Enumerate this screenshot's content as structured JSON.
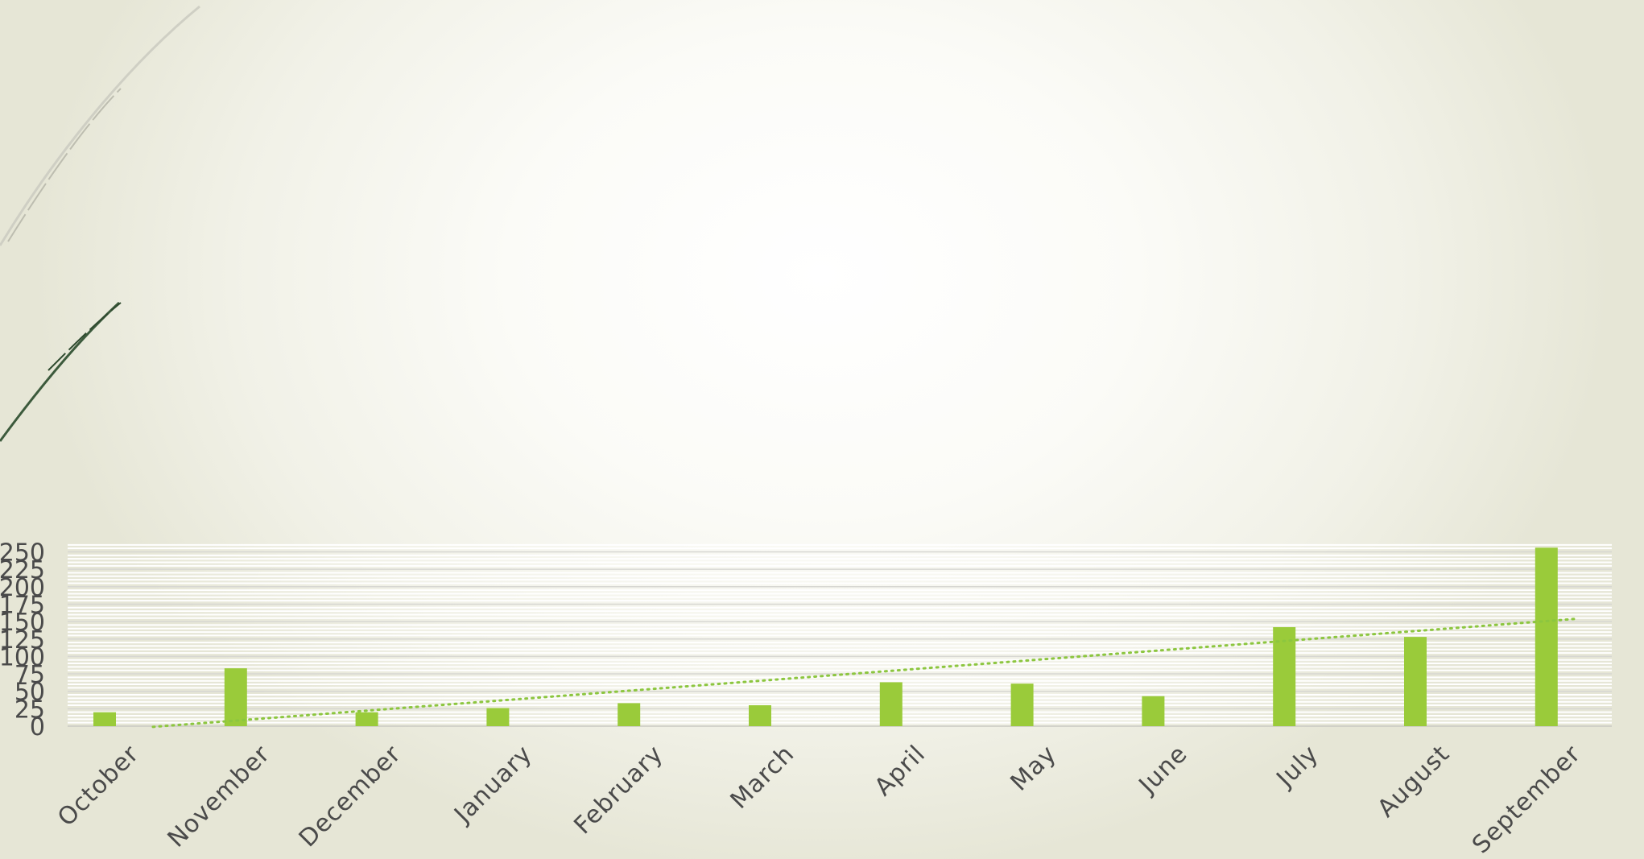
{
  "chart_data": {
    "type": "bar",
    "title": "",
    "xlabel": "",
    "ylabel": "",
    "categories": [
      "October",
      "November",
      "December",
      "January",
      "February",
      "March",
      "April",
      "May",
      "June",
      "July",
      "August",
      "September"
    ],
    "series": [
      {
        "values": [
          20,
          83,
          20,
          26,
          33,
          30,
          63,
          61,
          43,
          142,
          128,
          256
        ]
      }
    ],
    "trendline": {
      "type": "linear",
      "style": "dotted",
      "start_value": -1,
      "end_value": 154
    },
    "ylim": [
      0,
      260
    ],
    "yticks": [
      0,
      25,
      50,
      75,
      100,
      125,
      150,
      175,
      200,
      225,
      250
    ],
    "grid": true,
    "legend": "none",
    "colors": {
      "bar": "#9acb3a",
      "trendline": "#8cc63f",
      "grid_major": "#d7d7d2",
      "grid_minor": "#ffffff",
      "text": "#4a4a4a"
    }
  }
}
